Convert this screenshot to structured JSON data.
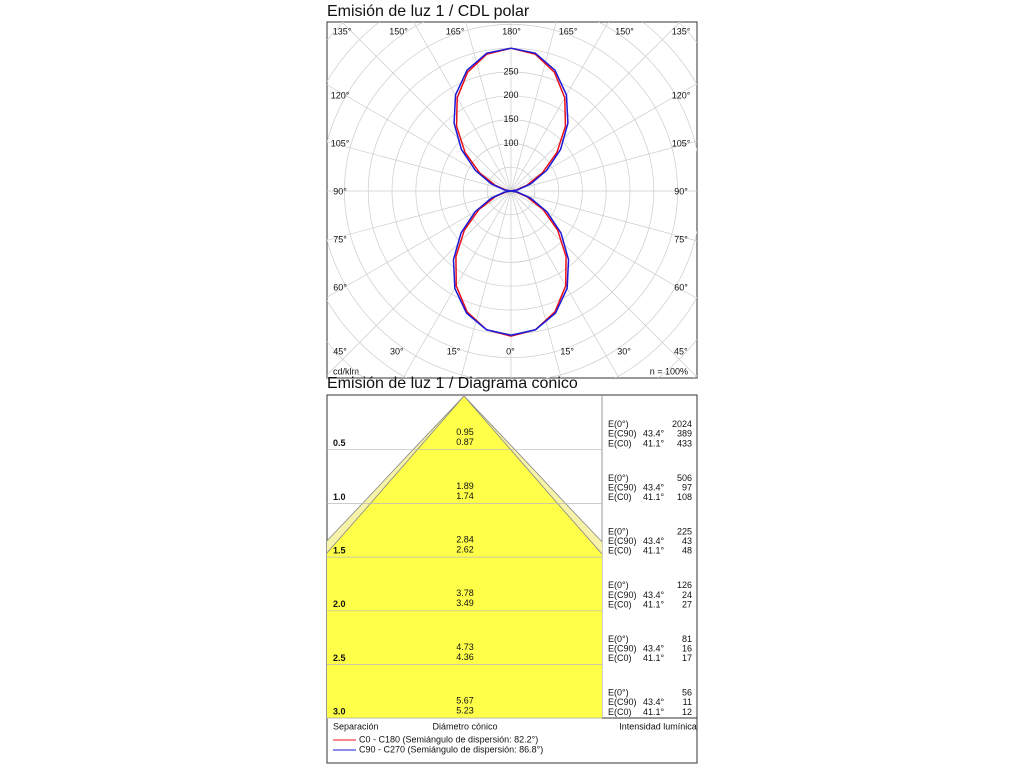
{
  "polar": {
    "title": "Emisión de luz 1 / CDL polar",
    "unit": "cd/klm",
    "efficiency": "n = 100%",
    "rticks": [
      100,
      150,
      200,
      250
    ],
    "angle_labels": {
      "top": [
        "135°",
        "150°",
        "165°",
        "180°",
        "165°",
        "150°",
        "135°"
      ],
      "left": [
        "120°",
        "105°",
        "90°",
        "75°",
        "60°"
      ],
      "right": [
        "120°",
        "105°",
        "90°",
        "75°",
        "60°"
      ],
      "bottom": [
        "45°",
        "30°",
        "15°",
        "0°",
        "15°",
        "30°",
        "45°"
      ]
    },
    "gamma": [
      0,
      10,
      20,
      30,
      40,
      50,
      60,
      70,
      80,
      90,
      100,
      110,
      120,
      130,
      140,
      150,
      160,
      170,
      180
    ],
    "series": [
      {
        "name": "C0 - C180 (Semiángulo de dispersión: 82.2°)",
        "color": "#e8101a",
        "values": [
          305,
          296,
          270,
          230,
          180,
          128,
          78,
          36,
          10,
          0,
          10,
          36,
          76,
          126,
          178,
          226,
          266,
          292,
          300
        ]
      },
      {
        "name": "C90 - C270 (Semiángulo de dispersión: 86.8°)",
        "color": "#1a1ad8",
        "values": [
          303,
          296,
          273,
          236,
          188,
          137,
          87,
          44,
          14,
          0,
          14,
          44,
          86,
          136,
          186,
          233,
          270,
          294,
          300
        ]
      }
    ]
  },
  "cone": {
    "title": "Emisión de luz 1 / Diagrama conico",
    "distances": [
      {
        "value": 0.5,
        "label": "0.5"
      },
      {
        "value": 1,
        "label": "1.0"
      },
      {
        "value": 1.5,
        "label": "1.5"
      },
      {
        "value": 2,
        "label": "2.0"
      },
      {
        "value": 2.5,
        "label": "2.5"
      },
      {
        "value": 3,
        "label": "3.0"
      }
    ],
    "diameter_c90": [
      0.95,
      1.89,
      2.84,
      3.78,
      4.73,
      5.67
    ],
    "diameter_c0": [
      0.87,
      1.74,
      2.62,
      3.49,
      4.36,
      5.23
    ],
    "e_labels": [
      "E(0°)",
      "E(C90)",
      "E(C0)"
    ],
    "c90_angle": "43.4°",
    "c0_angle": "41.1°",
    "e0": [
      2024,
      506,
      225,
      126,
      81,
      56
    ],
    "e_c90": [
      389,
      97,
      43,
      24,
      16,
      11
    ],
    "e_c0": [
      433,
      108,
      48,
      27,
      17,
      12
    ],
    "header": [
      "Separación",
      "Diámetro cónico",
      "Intensidad lumínica"
    ]
  }
}
